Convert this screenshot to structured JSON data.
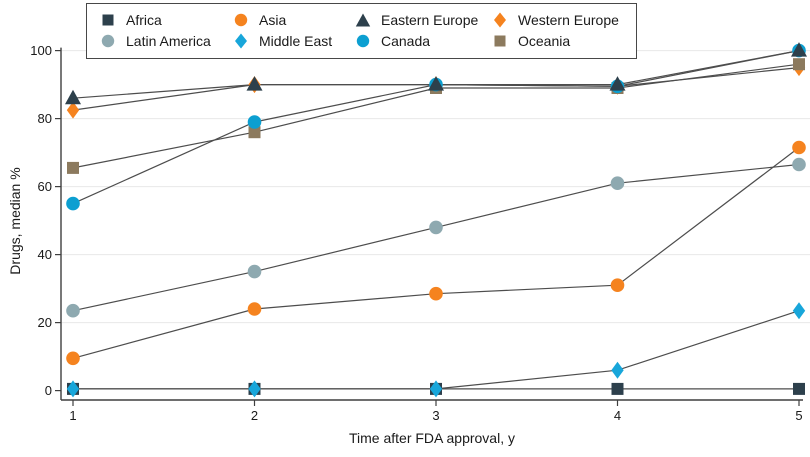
{
  "chart_data": {
    "type": "line",
    "title": "",
    "xlabel": "Time after FDA approval, y",
    "ylabel": "Drugs, median %",
    "x": [
      1,
      2,
      3,
      4,
      5
    ],
    "xticks": [
      "1",
      "2",
      "3",
      "4",
      "5"
    ],
    "yticks": [
      0,
      20,
      40,
      60,
      80,
      100
    ],
    "ylim": [
      0,
      100
    ],
    "grid": true,
    "legend_position": "top",
    "line_color": "#4d4d4d",
    "grid_color": "#e8e8e8",
    "axis_color": "#3f3f3f",
    "series": [
      {
        "name": "Africa",
        "marker": "square",
        "color": "#2d404c",
        "values": [
          0.5,
          0.5,
          0.5,
          0.5,
          0.5
        ]
      },
      {
        "name": "Asia",
        "marker": "circle",
        "color": "#f5831f",
        "values": [
          9.5,
          24,
          28.5,
          31,
          71.5
        ]
      },
      {
        "name": "Eastern Europe",
        "marker": "triangle",
        "color": "#2d404c",
        "values": [
          86,
          90,
          90,
          90,
          100
        ]
      },
      {
        "name": "Western Europe",
        "marker": "diamond",
        "color": "#f5831f",
        "values": [
          82.5,
          90,
          90,
          89.5,
          95
        ]
      },
      {
        "name": "Latin America",
        "marker": "circle",
        "color": "#8ea9b0",
        "values": [
          23.5,
          35,
          48,
          61,
          66.5
        ]
      },
      {
        "name": "Middle East",
        "marker": "diamond",
        "color": "#18a6da",
        "values": [
          0.5,
          0.5,
          0.5,
          6,
          23.5
        ]
      },
      {
        "name": "Canada",
        "marker": "circle",
        "color": "#0c9fd1",
        "values": [
          55,
          79,
          90,
          89.5,
          100
        ]
      },
      {
        "name": "Oceania",
        "marker": "square",
        "color": "#8c7a5e",
        "values": [
          65.5,
          76,
          89,
          89,
          96
        ]
      }
    ],
    "draw_order": [
      "Western Europe",
      "Oceania",
      "Canada",
      "Eastern Europe",
      "Latin America",
      "Asia",
      "Africa",
      "Middle East"
    ]
  }
}
